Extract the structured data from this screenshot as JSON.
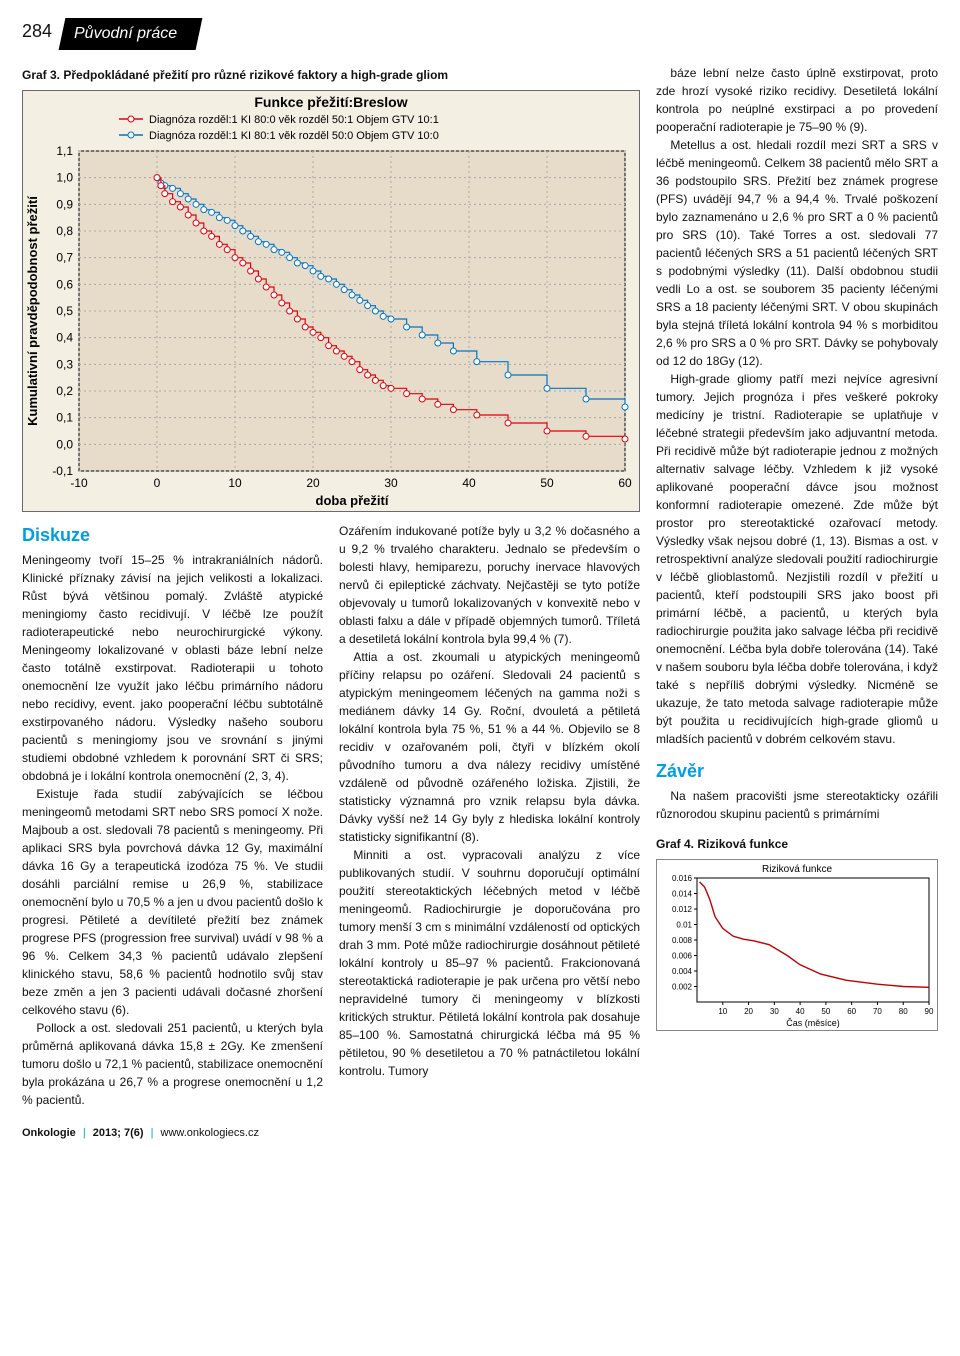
{
  "page_number": "284",
  "section_tab": "Původní práce",
  "graf3": {
    "label": "Graf 3.",
    "caption": "Předpokládané přežití pro různé rizikové faktory a high-grade gliom",
    "title": "Funkce přežití:Breslow",
    "legend1": "Diagnóza rozděl:1 KI 80:0 věk rozděl 50:1 Objem GTV 10:1",
    "legend2": "Diagnóza rozděl:1 KI 80:1 věk rozděl 50:0 Objem GTV 10:0",
    "ylabel": "Kumulativní pravděpodobnost přežití",
    "xlabel": "doba přežití",
    "xlim": [
      -10,
      60
    ],
    "ylim": [
      -0.1,
      1.1
    ],
    "xticks": [
      -10,
      0,
      10,
      20,
      30,
      40,
      50,
      60
    ],
    "yticks": [
      -0.1,
      0.0,
      0.1,
      0.2,
      0.3,
      0.4,
      0.5,
      0.6,
      0.7,
      0.8,
      0.9,
      1.0,
      1.1
    ],
    "bg": "#f3efe3",
    "plot_bg": "#e7dbc9",
    "grid_color": "#a8a8a8",
    "axis_color": "#000000",
    "series1_color": "#e3000f",
    "series2_color": "#0077c8",
    "marker": "circle",
    "marker_size": 3,
    "line_width": 1.2,
    "series1": [
      [
        0,
        1.0
      ],
      [
        0.5,
        0.97
      ],
      [
        1,
        0.94
      ],
      [
        2,
        0.91
      ],
      [
        3,
        0.89
      ],
      [
        4,
        0.86
      ],
      [
        5,
        0.83
      ],
      [
        6,
        0.8
      ],
      [
        7,
        0.78
      ],
      [
        8,
        0.75
      ],
      [
        9,
        0.73
      ],
      [
        10,
        0.7
      ],
      [
        11,
        0.68
      ],
      [
        12,
        0.65
      ],
      [
        13,
        0.62
      ],
      [
        14,
        0.59
      ],
      [
        15,
        0.56
      ],
      [
        16,
        0.53
      ],
      [
        17,
        0.5
      ],
      [
        18,
        0.47
      ],
      [
        19,
        0.44
      ],
      [
        20,
        0.42
      ],
      [
        21,
        0.4
      ],
      [
        22,
        0.37
      ],
      [
        23,
        0.35
      ],
      [
        24,
        0.33
      ],
      [
        25,
        0.31
      ],
      [
        26,
        0.28
      ],
      [
        27,
        0.26
      ],
      [
        28,
        0.24
      ],
      [
        29,
        0.22
      ],
      [
        30,
        0.21
      ],
      [
        32,
        0.19
      ],
      [
        34,
        0.17
      ],
      [
        36,
        0.15
      ],
      [
        38,
        0.13
      ],
      [
        41,
        0.11
      ],
      [
        45,
        0.08
      ],
      [
        50,
        0.05
      ],
      [
        55,
        0.03
      ],
      [
        60,
        0.02
      ]
    ],
    "series2": [
      [
        0,
        1.0
      ],
      [
        0.5,
        0.98
      ],
      [
        1,
        0.97
      ],
      [
        2,
        0.96
      ],
      [
        3,
        0.94
      ],
      [
        4,
        0.92
      ],
      [
        5,
        0.9
      ],
      [
        6,
        0.88
      ],
      [
        7,
        0.87
      ],
      [
        8,
        0.85
      ],
      [
        9,
        0.84
      ],
      [
        10,
        0.82
      ],
      [
        11,
        0.8
      ],
      [
        12,
        0.78
      ],
      [
        13,
        0.76
      ],
      [
        14,
        0.75
      ],
      [
        15,
        0.73
      ],
      [
        16,
        0.72
      ],
      [
        17,
        0.7
      ],
      [
        18,
        0.68
      ],
      [
        19,
        0.67
      ],
      [
        20,
        0.65
      ],
      [
        21,
        0.63
      ],
      [
        22,
        0.62
      ],
      [
        23,
        0.6
      ],
      [
        24,
        0.58
      ],
      [
        25,
        0.56
      ],
      [
        26,
        0.54
      ],
      [
        27,
        0.52
      ],
      [
        28,
        0.5
      ],
      [
        29,
        0.48
      ],
      [
        30,
        0.47
      ],
      [
        32,
        0.44
      ],
      [
        34,
        0.41
      ],
      [
        36,
        0.38
      ],
      [
        38,
        0.35
      ],
      [
        41,
        0.31
      ],
      [
        45,
        0.26
      ],
      [
        50,
        0.21
      ],
      [
        55,
        0.17
      ],
      [
        60,
        0.14
      ]
    ]
  },
  "diskuze_heading": "Diskuze",
  "diskuze_p1": "Meningeomy tvoří 15–25 % intrakraniálních nádorů. Klinické příznaky závisí na jejich velikosti a lokalizaci. Růst bývá většinou pomalý. Zvláště atypické meningiomy často recidivují. V léčbě lze použít radioterapeutické nebo neurochirurgické výkony. Meningeomy lokalizované v oblasti báze lební nelze často totálně exstirpovat. Radioterapii u tohoto onemocnění lze využít jako léčbu primárního nádoru nebo recidivy, event. jako pooperační léčbu subtotálně exstirpovaného nádoru. Výsledky našeho souboru pacientů s meningiomy jsou ve srovnání s jinými studiemi obdobné vzhledem k porovnání SRT či SRS; obdobná je i lokální kontrola onemocnění (2, 3, 4).",
  "diskuze_p2": "Existuje řada studií zabývajících se léčbou meningeomů metodami SRT nebo SRS pomocí X nože. Majboub a ost. sledovali 78 pacientů s meningeomy. Při aplikaci SRS byla povrchová dávka 12 Gy, maximální dávka 16 Gy a terapeutická izodóza 75 %. Ve studii dosáhli parciální remise u 26,9 %, stabilizace onemocnění bylo u 70,5 % a jen u dvou pacientů došlo k progresi. Pětileté a devítileté přežití bez známek progrese PFS (progression free survival) uvádí v 98 % a 96 %. Celkem 34,3 % pacientů udávalo zlepšení klinického stavu, 58,6 % pacientů hodnotilo svůj stav beze změn a jen 3 pacienti udávali dočasné zhoršení celkového stavu (6).",
  "diskuze_p3": "Pollock a ost. sledovali 251 pacientů, u kterých byla průměrná aplikovaná dávka 15,8 ± 2Gy. Ke zmenšení tumoru došlo u 72,1 % pacientů, stabilizace onemocnění byla prokázána u 26,7 % a progrese onemocnění u 1,2 % pacientů.",
  "col2_p1": "Ozářením indukované potíže byly u 3,2 % dočasného a u 9,2 % trvalého charakteru. Jednalo se především o bolesti hlavy, hemiparezu, poruchy inervace hlavových nervů či epileptické záchvaty. Nejčastěji se tyto potíže objevovaly u tumorů lokalizovaných v konvexitě nebo v oblasti falxu a dále v případě objemných tumorů. Tříletá a desetiletá lokální kontrola byla 99,4 % (7).",
  "col2_p2": "Attia a ost. zkoumali u atypických meningeomů příčiny relapsu po ozáření. Sledovali 24 pacientů s atypickým meningeomem léčených na gamma noži s mediánem dávky 14 Gy. Roční, dvouletá a pětiletá lokální kontrola byla 75 %, 51 % a 44 %. Objevilo se 8 recidiv v ozařovaném poli, čtyři v blízkém okolí původního tumoru a dva nálezy recidivy umístěné vzdáleně od původně ozářeného ložiska. Zjistili, že statisticky významná pro vznik relapsu byla dávka. Dávky vyšší než 14 Gy byly z hlediska lokální kontroly statisticky signifikantní (8).",
  "col2_p3": "Minniti a ost. vypracovali analýzu z více publikovaných studií. V souhrnu doporučují optimální použití stereotaktických léčebných metod v léčbě meningeomů. Radiochirurgie je doporučována pro tumory menší 3 cm s minimální vzdáleností od optických drah 3 mm. Poté může radiochirurgie dosáhnout pětileté lokální kontroly u 85–97 % pacientů. Frakcionovaná stereotaktická radioterapie je pak určena pro větší nebo nepravidelné tumory či meningeomy v blízkosti kritických struktur. Pětiletá lokální kontrola pak dosahuje 85–100 %. Samostatná chirurgická léčba má 95 % pětiletou, 90 % desetiletou a 70 % patnáctiletou lokální kontrolu. Tumory",
  "right_p1": "báze lební nelze často úplně exstirpovat, proto zde hrozí vysoké riziko recidivy. Desetiletá lokální kontrola po neúplné exstirpaci a po provedení pooperační radioterapie je 75–90 % (9).",
  "right_p2": "Metellus a ost. hledali rozdíl mezi SRT a SRS v léčbě meningeomů. Celkem 38 pacientů mělo SRT a 36 podstoupilo SRS. Přežití bez známek progrese (PFS) uvádějí 94,7 % a 94,4 %. Trvalé poškození bylo zaznamenáno u 2,6 % pro SRT a 0 % pacientů pro SRS (10). Také Torres a ost. sledovali 77 pacientů léčených SRS a 51 pacientů léčených SRT s podobnými výsledky (11). Další obdobnou studii vedli Lo a ost. se souborem 35 pacienty léčenými SRS a 18 pacienty léčenými SRT. V obou skupinách byla stejná tříletá lokální kontrola 94 % s morbiditou 2,6 % pro SRS a 0 % pro SRT. Dávky se pohybovaly od 12 do 18Gy (12).",
  "right_p3": "High-grade gliomy patří mezi nejvíce agresivní tumory. Jejich prognóza i přes veškeré pokroky medicíny je tristní. Radioterapie se uplatňuje v léčebné strategii především jako adjuvantní metoda. Při recidivě může být radioterapie jednou z možných alternativ salvage léčby. Vzhledem k již vysoké aplikované pooperační dávce jsou možnost konformní radioterapie omezené. Zde může být prostor pro stereotaktické ozařovací metody. Výsledky však nejsou dobré (1, 13). Bismas a ost. v retrospektivní analýze sledovali použití radiochirurgie v léčbě glioblastomů. Nezjistili rozdíl v přežití u pacientů, kteří podstoupili SRS jako boost při primární léčbě, a pacientů, u kterých byla radiochirurgie použita jako salvage léčba při recidivě onemocnění. Léčba byla dobře tolerována (14). Také v našem souboru byla léčba dobře tolerována, i když také s nepříliš dobrými výsledky. Nicméně se ukazuje, že tato metoda salvage radioterapie může být použita u recidivujících high-grade gliomů u mladších pacientů v dobrém celkovém stavu.",
  "zaver_heading": "Závěr",
  "zaver_p": "Na našem pracovišti jsme stereotakticky ozářili různorodou skupinu pacientů s primárními",
  "graf4": {
    "label": "Graf 4.",
    "caption": "Riziková funkce",
    "title": "Riziková funkce",
    "xlabel": "Čas (měsíce)",
    "xlim": [
      0,
      90
    ],
    "ylim": [
      0,
      0.016
    ],
    "xticks": [
      10,
      20,
      30,
      40,
      50,
      60,
      70,
      80,
      90
    ],
    "yticks": [
      0.002,
      0.004,
      0.006,
      0.008,
      0.01,
      0.012,
      0.014,
      0.016
    ],
    "line_color": "#c00000",
    "line_width": 1.4,
    "bg": "#ffffff",
    "grid_color": "#e6e6e6",
    "axis_color": "#000000",
    "data": [
      [
        1,
        0.0155
      ],
      [
        3,
        0.0148
      ],
      [
        5,
        0.0132
      ],
      [
        7,
        0.011
      ],
      [
        10,
        0.0095
      ],
      [
        14,
        0.0085
      ],
      [
        18,
        0.0081
      ],
      [
        22,
        0.0079
      ],
      [
        28,
        0.0074
      ],
      [
        35,
        0.006
      ],
      [
        40,
        0.0048
      ],
      [
        48,
        0.0036
      ],
      [
        58,
        0.0028
      ],
      [
        70,
        0.0023
      ],
      [
        80,
        0.002
      ],
      [
        90,
        0.0019
      ]
    ]
  },
  "footer_journal": "Onkologie",
  "footer_issue": "2013; 7(6)",
  "footer_site": "www.onkologiecs.cz"
}
